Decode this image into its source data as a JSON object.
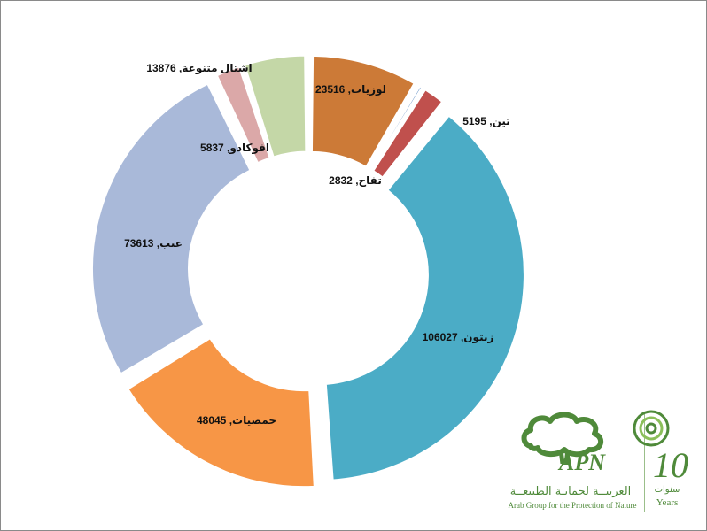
{
  "chart_data": {
    "type": "pie",
    "style": "donut-exploded",
    "title": "",
    "legend": "none",
    "slices": [
      {
        "label": "لوزيات",
        "value": 23516,
        "color": "#cc7a37"
      },
      {
        "label": "",
        "value": 1200,
        "color": "#4f81bd"
      },
      {
        "label": "تين",
        "value": 5195,
        "color": "#c0504d"
      },
      {
        "label": "زيتون",
        "value": 106027,
        "color": "#4bacc6"
      },
      {
        "label": "حمضيات",
        "value": 48045,
        "color": "#f79646"
      },
      {
        "label": "عنب",
        "value": 73613,
        "color": "#a9b9d9"
      },
      {
        "label": "افوكادو",
        "value": 5837,
        "color": "#dba8a8"
      },
      {
        "label": "اشتال متنوعة",
        "value": 13876,
        "color": "#c4d7a7"
      }
    ],
    "extra_labels": [
      {
        "label": "تفاح",
        "value": 2832
      }
    ]
  },
  "logo": {
    "brand": "APN",
    "arabic_name": "العربيــة لحمايـة الطبيعــة",
    "english_name": "Arab Group for the Protection of Nature",
    "anniversary_number": "10",
    "anniversary_ar": "سنوات",
    "anniversary_en": "Years"
  }
}
